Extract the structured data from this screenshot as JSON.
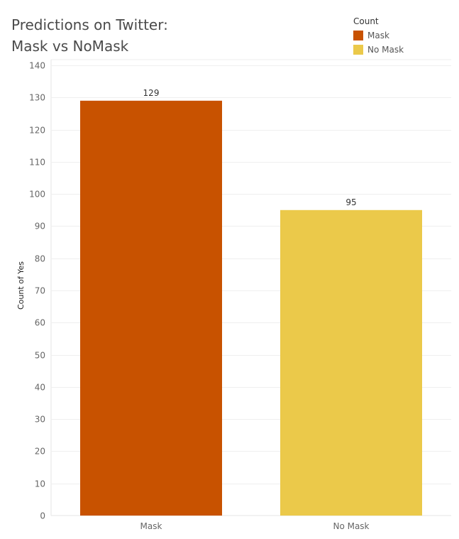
{
  "chart_data": {
    "type": "bar",
    "title_lines": [
      "Predictions on Twitter:",
      "Mask vs NoMask"
    ],
    "legend_title": "Count",
    "categories": [
      "Mask",
      "No Mask"
    ],
    "values": [
      129,
      95
    ],
    "colors": [
      "#C85200",
      "#EBC94A"
    ],
    "legend": [
      {
        "label": "Mask",
        "color": "#C85200"
      },
      {
        "label": "No Mask",
        "color": "#EBC94A"
      }
    ],
    "ylabel": "Count of Yes",
    "xlabel": "",
    "ylim": [
      0,
      140
    ],
    "yticks": [
      0,
      10,
      20,
      30,
      40,
      50,
      60,
      70,
      80,
      90,
      100,
      110,
      120,
      130,
      140
    ],
    "grid": true,
    "legend_position": "top-right"
  }
}
